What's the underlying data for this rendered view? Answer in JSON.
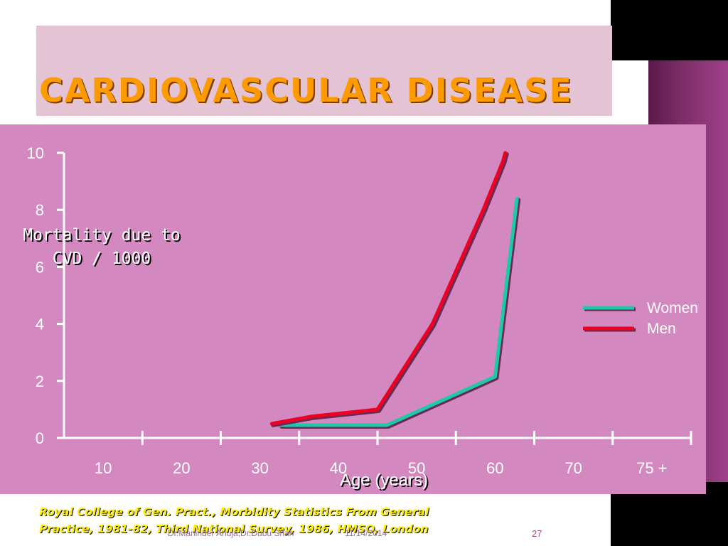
{
  "slide": {
    "title": "Cardiovascular Disease",
    "citation_line1": "Royal College of Gen. Pract., Morbidity Statistics From General",
    "citation_line2": "Practice, 1981-82, Third National Survey, 1986, HMSO, London",
    "footer_author": "Dr.Maninder Ahuja,Dr.Dubu Shah",
    "footer_date": "11/14/2014",
    "page_number": "27"
  },
  "chart_data": {
    "type": "line",
    "ylabel_line1": "Mortality due to",
    "ylabel_line2": "CVD / 1000",
    "xlabel": "Age (years)",
    "categories": [
      "10",
      "20",
      "30",
      "40",
      "50",
      "60",
      "70",
      "75 +"
    ],
    "y_ticks": [
      "0",
      "2",
      "4",
      "6",
      "8",
      "10"
    ],
    "ylim": [
      0,
      10
    ],
    "legend_position": "right",
    "series": [
      {
        "name": "Women",
        "color": "#1fc8a8",
        "points": [
          [
            32.6,
            0.45
          ],
          [
            43.4,
            0.45
          ],
          [
            46.2,
            0.45
          ],
          [
            60.0,
            2.15
          ],
          [
            62.8,
            8.4
          ]
        ]
      },
      {
        "name": "Men",
        "color": "#ee0022",
        "points": [
          [
            31.5,
            0.5
          ],
          [
            36.5,
            0.75
          ],
          [
            45.0,
            1.0
          ],
          [
            52.0,
            4.0
          ],
          [
            58.5,
            8.0
          ],
          [
            61.0,
            9.7
          ],
          [
            61.3,
            10.0
          ]
        ]
      }
    ]
  }
}
